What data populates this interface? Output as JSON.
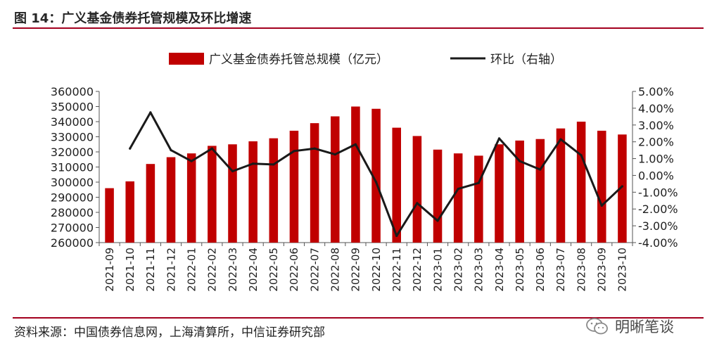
{
  "chart_data": {
    "type": "bar",
    "title": "图 14：广义基金债券托管规模及环比增速",
    "legend": "top",
    "grid": false,
    "categories": [
      "2021-09",
      "2021-10",
      "2021-11",
      "2021-12",
      "2022-01",
      "2022-02",
      "2022-03",
      "2022-04",
      "2022-05",
      "2022-06",
      "2022-07",
      "2022-08",
      "2022-09",
      "2022-10",
      "2022-11",
      "2022-12",
      "2023-01",
      "2023-02",
      "2023-03",
      "2023-04",
      "2023-05",
      "2023-06",
      "2023-07",
      "2023-08",
      "2023-09",
      "2023-10"
    ],
    "series": [
      {
        "name": "广义基金债券托管总规模（亿元）",
        "type": "bar",
        "axis": "left",
        "color": "#c00000",
        "values": [
          296000,
          300500,
          312000,
          316500,
          319000,
          324000,
          325000,
          327000,
          329000,
          334000,
          339000,
          343500,
          350000,
          348500,
          336000,
          330500,
          321500,
          319000,
          317500,
          325000,
          327500,
          328500,
          335500,
          340000,
          334000,
          331500
        ]
      },
      {
        "name": "环比（右轴）",
        "type": "line",
        "axis": "right",
        "color": "#1a1a1a",
        "values": [
          null,
          1.6,
          3.75,
          1.5,
          0.85,
          1.6,
          0.25,
          0.7,
          0.65,
          1.45,
          1.6,
          1.25,
          1.85,
          -0.4,
          -3.6,
          -1.65,
          -2.7,
          -0.8,
          -0.45,
          2.2,
          0.85,
          0.35,
          2.15,
          1.2,
          -1.8,
          -0.65
        ]
      }
    ],
    "y_left": {
      "min": 260000,
      "max": 360000,
      "tick_labels": [
        "260000",
        "270000",
        "280000",
        "290000",
        "300000",
        "310000",
        "320000",
        "330000",
        "340000",
        "350000",
        "360000"
      ]
    },
    "y_right": {
      "min": -4,
      "max": 5,
      "unit": "%",
      "tick_labels": [
        "-4.00%",
        "-3.00%",
        "-2.00%",
        "-1.00%",
        "0.00%",
        "1.00%",
        "2.00%",
        "3.00%",
        "4.00%",
        "5.00%"
      ]
    }
  },
  "footer": {
    "source": "资料来源：中国债券信息网，上海清算所，中信证券研究部",
    "watermark": "明晰笔谈",
    "watermark_icon": "wechat-icon"
  },
  "colors": {
    "accent_rule": "#a3001e",
    "axis": "#555555"
  }
}
